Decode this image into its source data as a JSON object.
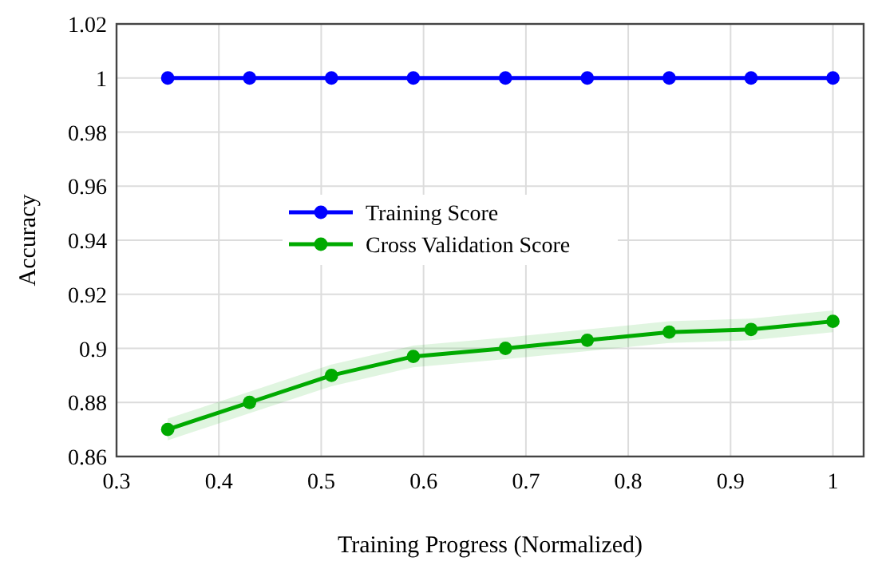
{
  "chart_data": {
    "type": "line",
    "xlabel": "Training Progress (Normalized)",
    "ylabel": "Accuracy",
    "x": [
      0.35,
      0.43,
      0.51,
      0.59,
      0.68,
      0.76,
      0.84,
      0.92,
      1.0
    ],
    "series": [
      {
        "name": "Training Score",
        "color": "#0000ff",
        "values": [
          1,
          1,
          1,
          1,
          1,
          1,
          1,
          1,
          1
        ]
      },
      {
        "name": "Cross Validation Score",
        "color": "#00aa00",
        "values": [
          0.87,
          0.88,
          0.89,
          0.897,
          0.9,
          0.903,
          0.906,
          0.907,
          0.91
        ],
        "lower": [
          0.866,
          0.876,
          0.886,
          0.893,
          0.896,
          0.899,
          0.902,
          0.903,
          0.906
        ],
        "upper": [
          0.874,
          0.884,
          0.894,
          0.901,
          0.904,
          0.907,
          0.91,
          0.911,
          0.914
        ]
      }
    ],
    "xlim": [
      0.3,
      1.03
    ],
    "xticks": [
      0.3,
      0.4,
      0.5,
      0.6,
      0.7,
      0.8,
      0.9,
      1
    ],
    "ylim": [
      0.86,
      1.02
    ],
    "yticks": [
      0.86,
      0.88,
      0.9,
      0.92,
      0.94,
      0.96,
      0.98,
      1,
      1.02
    ],
    "grid": true,
    "legend": "center",
    "marker": "circle",
    "line_style": "solid"
  }
}
